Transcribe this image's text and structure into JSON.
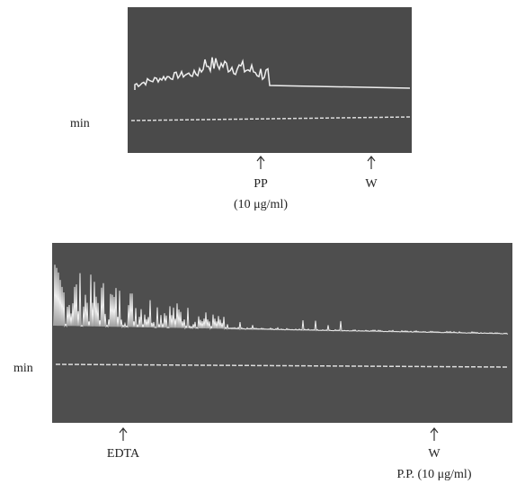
{
  "top_panel": {
    "axis_label": "min",
    "markers": [
      {
        "label": "PP",
        "sublabel": "(10 μg/ml)"
      },
      {
        "label": "W"
      }
    ]
  },
  "bottom_panel": {
    "axis_label": "min",
    "markers": [
      {
        "label": "EDTA"
      },
      {
        "label": "W",
        "sublabel": "P.P. (10 μg/ml)"
      }
    ]
  }
}
